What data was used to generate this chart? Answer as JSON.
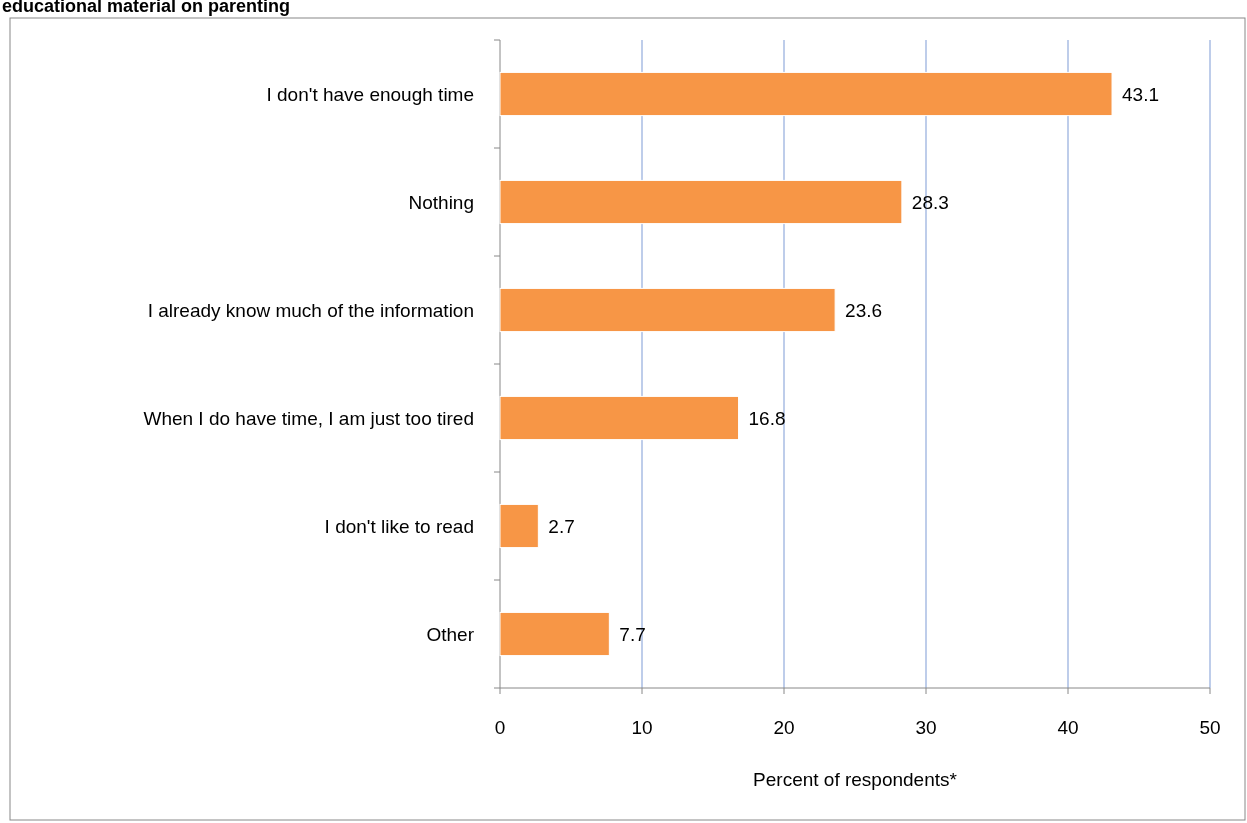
{
  "chart_data": {
    "type": "bar",
    "orientation": "horizontal",
    "title": "educational material on parenting",
    "xlabel": "Percent of respondents*",
    "categories": [
      "I don't have enough time",
      "Nothing",
      "I already know much of the information",
      "When I do have time, I am just too tired",
      "I don't like to read",
      "Other"
    ],
    "values": [
      43.1,
      28.3,
      23.6,
      16.8,
      2.7,
      7.7
    ],
    "color": "#f79646",
    "xlim": [
      0,
      50
    ],
    "xticks": [
      0,
      10,
      20,
      30,
      40,
      50
    ],
    "grid": "x",
    "data_labels": true
  }
}
